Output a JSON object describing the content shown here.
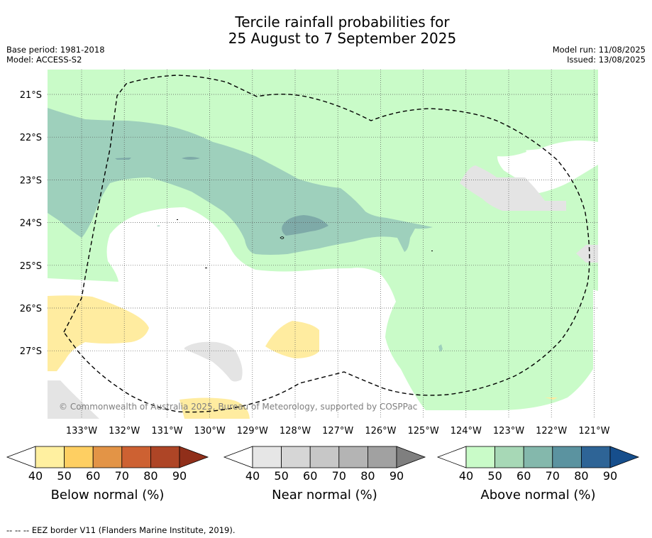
{
  "title_line1": "Tercile rainfall probabilities for",
  "title_line2": "25 August to 7 September 2025",
  "meta_left": [
    "Base period: 1981-2018",
    "Model: ACCESS-S2"
  ],
  "meta_right": [
    "Model run: 11/08/2025",
    "Issued: 13/08/2025"
  ],
  "lat_labels": [
    "21°S",
    "22°S",
    "23°S",
    "24°S",
    "25°S",
    "26°S",
    "27°S"
  ],
  "lon_labels": [
    "133°W",
    "132°W",
    "131°W",
    "130°W",
    "129°W",
    "128°W",
    "127°W",
    "126°W",
    "125°W",
    "124°W",
    "123°W",
    "122°W",
    "121°W"
  ],
  "copyright": "© Commonwealth of Australia 2025, Bureau of Meteorology, supported by COSPPac",
  "colorbars": [
    {
      "label": "Below normal (%)",
      "ticks": [
        "40",
        "50",
        "60",
        "70",
        "80",
        "90"
      ],
      "colors": [
        "#fff0a0",
        "#fecf62",
        "#e39446",
        "#cd6132",
        "#ae4526",
        "#902f1a"
      ]
    },
    {
      "label": "Near normal (%)",
      "ticks": [
        "40",
        "50",
        "60",
        "70",
        "80",
        "90"
      ],
      "colors": [
        "#e6e6e6",
        "#d6d6d6",
        "#c7c7c7",
        "#b4b4b4",
        "#a1a1a1",
        "#7f7f7f"
      ]
    },
    {
      "label": "Above normal (%)",
      "ticks": [
        "40",
        "50",
        "60",
        "70",
        "80",
        "90"
      ],
      "colors": [
        "#c9fbc8",
        "#a7d8b6",
        "#84b8ac",
        "#5b93a0",
        "#2e6496",
        "#164e8c"
      ]
    }
  ],
  "colors": {
    "above_40": "#c9fbc8",
    "above_50": "#9ed0bc",
    "above_60": "#7eaaa8",
    "below_40": "#ffeca0",
    "near_40": "#e4e4e4",
    "eez_border": "#000000",
    "grid": "#555555"
  },
  "footnote": "--  --  -- EEZ border V11 (Flanders Marine Institute, 2019)."
}
